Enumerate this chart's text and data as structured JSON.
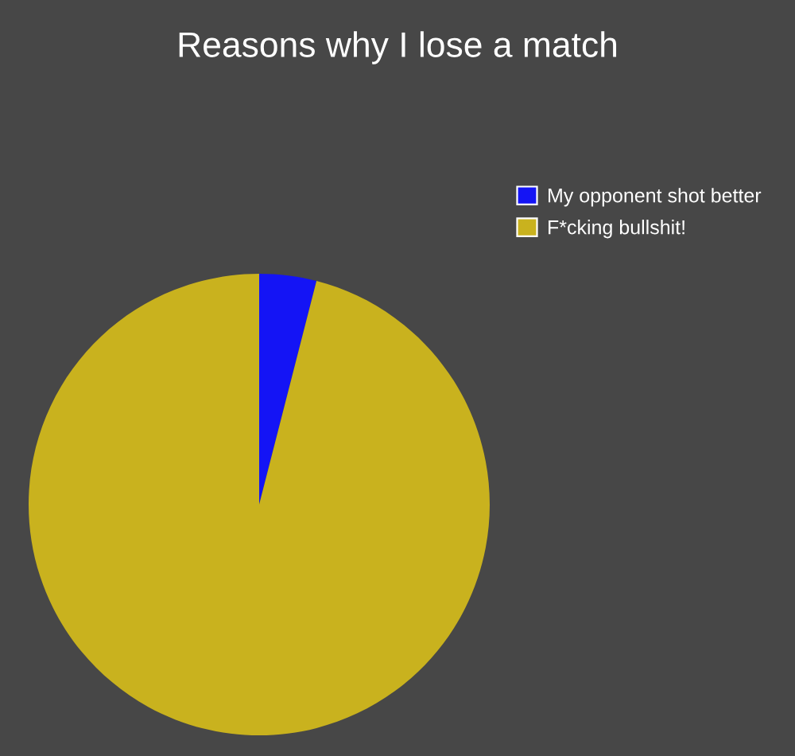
{
  "chart_data": {
    "type": "pie",
    "title": "Reasons why I lose a match",
    "categories": [
      "My opponent shot better",
      "F*cking bullshit!"
    ],
    "values": [
      4,
      96
    ],
    "colors": [
      "#1414f5",
      "#c9b21e"
    ],
    "legend": "top right"
  }
}
